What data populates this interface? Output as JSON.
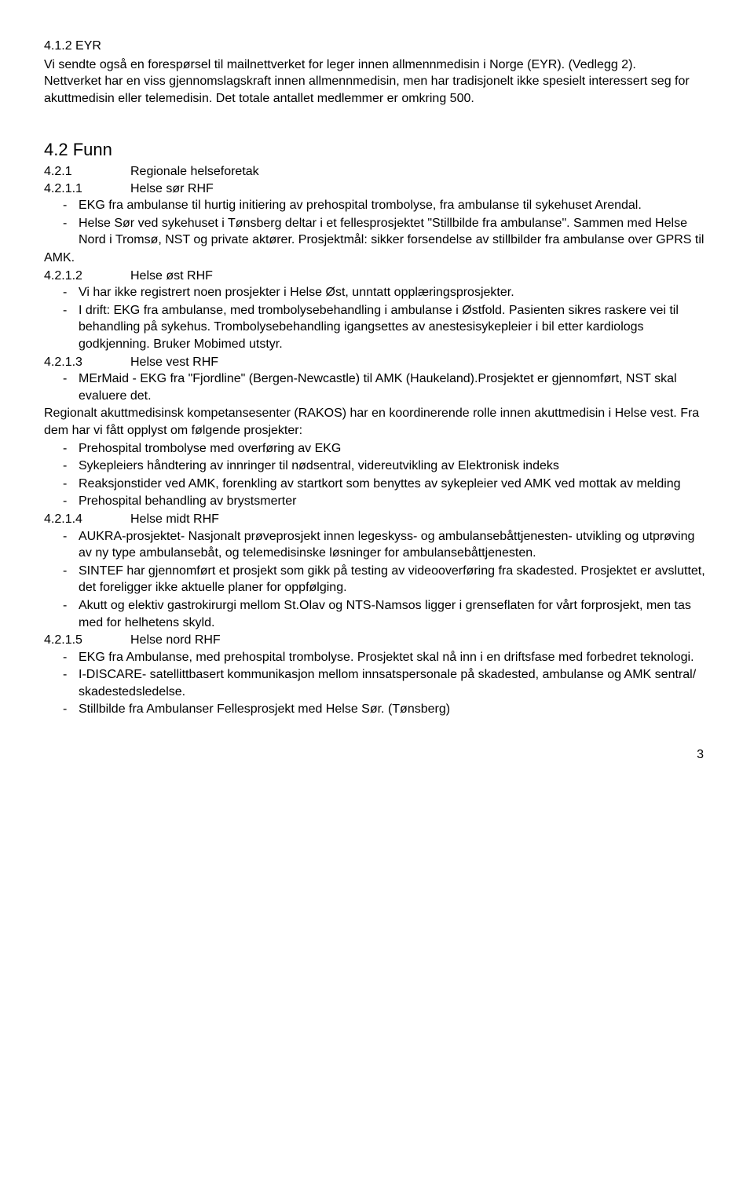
{
  "section412": {
    "heading": "4.1.2   EYR",
    "body": "Vi sendte også en forespørsel til mailnettverket for leger innen allmennmedisin i Norge (EYR). (Vedlegg 2).\nNettverket har en viss gjennomslagskraft innen allmennmedisin, men har tradisjonelt ikke spesielt interessert seg for akuttmedisin eller telemedisin. Det totale antallet medlemmer er omkring 500."
  },
  "section42": {
    "heading": "4.2   Funn",
    "sub421": {
      "num": "4.2.1",
      "title": "Regionale helseforetak"
    }
  },
  "s4211": {
    "num": "4.2.1.1",
    "title": "Helse sør RHF",
    "b1": "EKG fra ambulanse til hurtig initiering av prehospital trombolyse, fra ambulanse til sykehuset Arendal.",
    "b2": "Helse Sør ved sykehuset i Tønsberg deltar i et fellesprosjektet \"Stillbilde fra ambulanse\". Sammen med Helse Nord i Tromsø, NST og private aktører. Prosjektmål: sikker forsendelse av stillbilder fra ambulanse over GPRS til",
    "amk": "AMK."
  },
  "s4212": {
    "num": "4.2.1.2",
    "title": "Helse øst RHF",
    "b1": "Vi har ikke registrert noen prosjekter i Helse Øst, unntatt opplæringsprosjekter.",
    "b2": "I drift: EKG fra ambulanse, med trombolysebehandling i ambulanse i Østfold. Pasienten sikres raskere vei til behandling på sykehus. Trombolysebehandling igangsettes av anestesisykepleier i bil etter kardiologs godkjenning. Bruker Mobimed utstyr."
  },
  "s4213": {
    "num": "4.2.1.3",
    "title": "Helse vest RHF",
    "b1": "MErMaid - EKG fra \"Fjordline\" (Bergen-Newcastle) til AMK (Haukeland).Prosjektet er gjennomført, NST skal evaluere det.",
    "intro": "Regionalt akuttmedisinsk kompetansesenter (RAKOS) har en koordinerende rolle innen akuttmedisin i Helse vest. Fra dem har vi fått opplyst om følgende prosjekter:",
    "rb1": "Prehospital trombolyse med overføring av EKG",
    "rb2": "Sykepleiers håndtering av innringer til nødsentral, videreutvikling av Elektronisk indeks",
    "rb3": "Reaksjonstider ved AMK, forenkling av startkort som benyttes av sykepleier ved AMK ved mottak av melding",
    "rb4": "Prehospital behandling av brystsmerter"
  },
  "s4214": {
    "num": "4.2.1.4",
    "title": "Helse midt RHF",
    "b1": "AUKRA-prosjektet- Nasjonalt prøveprosjekt innen legeskyss- og ambulansebåttjenesten- utvikling og utprøving av ny type ambulansebåt, og telemedisinske løsninger for ambulansebåttjenesten.",
    "b2": "SINTEF har gjennomført et prosjekt som gikk på testing av  videooverføring fra skadested. Prosjektet er avsluttet, det foreligger ikke aktuelle planer for oppfølging.",
    "b3": "Akutt og elektiv gastrokirurgi mellom St.Olav og NTS-Namsos ligger i grenseflaten for vårt forprosjekt, men tas med for helhetens skyld."
  },
  "s4215": {
    "num": "4.2.1.5",
    "title": "Helse nord RHF",
    "b1": "EKG fra Ambulanse, med prehospital trombolyse. Prosjektet skal nå inn i en driftsfase med forbedret teknologi.",
    "b2": "I-DISCARE-  satellittbasert kommunikasjon mellom innsatspersonale på skadested, ambulanse og AMK sentral/ skadestedsledelse.",
    "b3": "Stillbilde fra Ambulanser Fellesprosjekt med Helse Sør. (Tønsberg)"
  },
  "pageNumber": "3"
}
